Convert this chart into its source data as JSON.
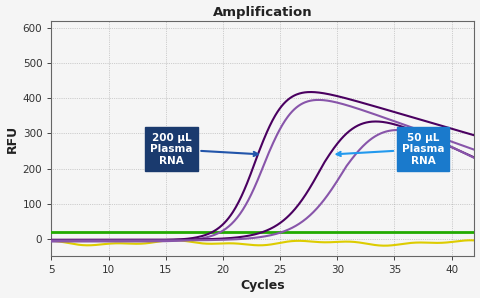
{
  "title": "Amplification",
  "xlabel": "Cycles",
  "ylabel": "RFU",
  "xlim": [
    5,
    42
  ],
  "ylim": [
    -50,
    620
  ],
  "xticks": [
    5,
    10,
    15,
    20,
    25,
    30,
    35,
    40
  ],
  "yticks": [
    0,
    100,
    200,
    300,
    400,
    500,
    600
  ],
  "bg_color": "#f5f5f5",
  "plot_bg": "#f0f0f0",
  "grid_color": "#888888",
  "purple_dark": "#4a0060",
  "purple_light": "#8855aa",
  "green_color": "#22aa00",
  "yellow_color": "#ddcc00",
  "ann1_bg": "#1a3a6e",
  "ann2_bg": "#1a7acc",
  "ann_text_color": "#ffffff",
  "annotation1_text": "200 μL\nPlasma\nRNA",
  "annotation2_text": "50 μL\nPlasma\nRNA",
  "figsize": [
    4.8,
    2.98
  ],
  "dpi": 100
}
